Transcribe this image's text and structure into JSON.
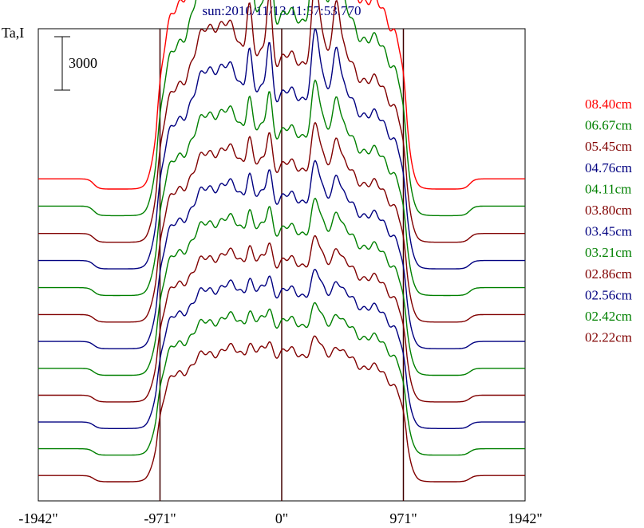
{
  "chart_data": {
    "type": "line",
    "title": "sun:2010/11/13 11:57:53.770",
    "ylabel": "Ta,I",
    "xlabel": "",
    "xlim": [
      -1942,
      1942
    ],
    "x_ticks": [
      {
        "value": -1942,
        "label": "-1942\""
      },
      {
        "value": -971,
        "label": "-971\""
      },
      {
        "value": 0,
        "label": "0\""
      },
      {
        "value": 971,
        "label": "971\""
      },
      {
        "value": 1942,
        "label": "1942\""
      }
    ],
    "vertical_lines": [
      -971,
      0,
      971
    ],
    "scale_bar": {
      "label": "3000",
      "value": 3000
    },
    "grid": false,
    "legend_position": "right",
    "colors": {
      "red": "#ff0000",
      "green": "#008000",
      "maroon": "#800000",
      "navy": "#000080",
      "axes": "#000000",
      "vline": "#400000",
      "title": "#000080"
    },
    "series": [
      {
        "name": "08.40cm",
        "color": "#ff0000",
        "amp": 1.15
      },
      {
        "name": "06.67cm",
        "color": "#008000",
        "amp": 1.0
      },
      {
        "name": "05.45cm",
        "color": "#800000",
        "amp": 0.82
      },
      {
        "name": "04.76cm",
        "color": "#000080",
        "amp": 0.72
      },
      {
        "name": "04.11cm",
        "color": "#008000",
        "amp": 0.6
      },
      {
        "name": "03.80cm",
        "color": "#800000",
        "amp": 0.52
      },
      {
        "name": "03.45cm",
        "color": "#000080",
        "amp": 0.46
      },
      {
        "name": "03.21cm",
        "color": "#008000",
        "amp": 0.4
      },
      {
        "name": "02.86cm",
        "color": "#800000",
        "amp": 0.34
      },
      {
        "name": "02.56cm",
        "color": "#000080",
        "amp": 0.3
      },
      {
        "name": "02.42cm",
        "color": "#008000",
        "amp": 0.26
      },
      {
        "name": "02.22cm",
        "color": "#800000",
        "amp": 0.22
      }
    ]
  }
}
